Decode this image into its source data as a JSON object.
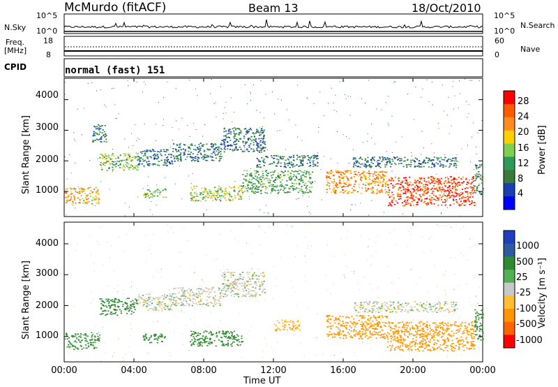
{
  "header": {
    "site": "McMurdo (fitACF)",
    "beam": "Beam 13",
    "date": "18/Oct/2010"
  },
  "noise_panel": {
    "left_label": "N.Sky",
    "left_ticks": [
      "10^5",
      "10^0"
    ],
    "right_ticks": [
      "10^5",
      "10^0"
    ],
    "right_label": "N.Search"
  },
  "freq_panel": {
    "left_label_1": "Freq.",
    "left_label_2": "[MHz]",
    "left_ticks": [
      "18",
      "8"
    ],
    "right_ticks": [
      "60",
      "0"
    ],
    "right_label": "Nave"
  },
  "cpid": {
    "label": "CPID",
    "value": "normal (fast) 151"
  },
  "colors": {
    "power": [
      "#0000ff",
      "#1a3fb0",
      "#3a7a3a",
      "#2e9a5a",
      "#7fd050",
      "#ffd000",
      "#ff8c1a",
      "#ff5a00",
      "#ff0000"
    ],
    "velocity": [
      "#ff0000",
      "#ff6400",
      "#ff9600",
      "#ffbe30",
      "#c8c8c8",
      "#52b052",
      "#2e8a2e",
      "#2e5aa0",
      "#1e40c0"
    ]
  },
  "chart_data": [
    {
      "type": "heatmap",
      "title": "Power",
      "xlabel": "Time UT",
      "ylabel": "Slant Range [km]",
      "x_ticks": [
        "00:00",
        "04:00",
        "08:00",
        "12:00",
        "16:00",
        "20:00",
        "00:00"
      ],
      "y_ticks": [
        "1000",
        "2000",
        "3000",
        "4000"
      ],
      "xlim_hours": [
        0,
        24
      ],
      "ylim_km": [
        180,
        4700
      ],
      "colorbar": {
        "label": "Power [dB]",
        "ticks": [
          "4",
          "8",
          "12",
          "16",
          "20",
          "24",
          "28"
        ],
        "range": [
          0,
          30
        ]
      },
      "echo_regions": [
        {
          "t0": 0.0,
          "t1": 2.0,
          "r0": 600,
          "r1": 1150,
          "value": 20
        },
        {
          "t0": 1.6,
          "t1": 2.4,
          "r0": 2600,
          "r1": 3200,
          "value": 8
        },
        {
          "t0": 2.0,
          "t1": 4.2,
          "r0": 1700,
          "r1": 2250,
          "value": 14
        },
        {
          "t0": 4.2,
          "t1": 6.2,
          "r0": 1850,
          "r1": 2400,
          "value": 8
        },
        {
          "t0": 4.5,
          "t1": 5.8,
          "r0": 800,
          "r1": 1100,
          "value": 14
        },
        {
          "t0": 6.2,
          "t1": 9.0,
          "r0": 2000,
          "r1": 2600,
          "value": 8
        },
        {
          "t0": 7.2,
          "t1": 10.2,
          "r0": 700,
          "r1": 1200,
          "value": 16
        },
        {
          "t0": 9.0,
          "t1": 11.5,
          "r0": 2300,
          "r1": 3100,
          "value": 8
        },
        {
          "t0": 10.2,
          "t1": 14.2,
          "r0": 950,
          "r1": 1700,
          "value": 12
        },
        {
          "t0": 11.0,
          "t1": 14.5,
          "r0": 1800,
          "r1": 2200,
          "value": 8
        },
        {
          "t0": 15.0,
          "t1": 18.5,
          "r0": 950,
          "r1": 1700,
          "value": 22
        },
        {
          "t0": 16.5,
          "t1": 22.5,
          "r0": 1800,
          "r1": 2150,
          "value": 8
        },
        {
          "t0": 18.5,
          "t1": 23.5,
          "r0": 550,
          "r1": 1500,
          "value": 26
        },
        {
          "t0": 23.5,
          "t1": 24.0,
          "r0": 900,
          "r1": 1900,
          "value": 10
        }
      ]
    },
    {
      "type": "heatmap",
      "title": "Velocity",
      "xlabel": "Time UT",
      "ylabel": "Slant Range [km]",
      "x_ticks": [
        "00:00",
        "04:00",
        "08:00",
        "12:00",
        "16:00",
        "20:00",
        "00:00"
      ],
      "y_ticks": [
        "1000",
        "2000",
        "3000",
        "4000"
      ],
      "xlim_hours": [
        0,
        24
      ],
      "ylim_km": [
        180,
        4700
      ],
      "colorbar": {
        "label": "Velocity [m s⁻¹]",
        "ticks": [
          "1000",
          "500",
          "25",
          "-25",
          "-100",
          "-500",
          "-1000"
        ]
      },
      "echo_regions": [
        {
          "t0": 0.0,
          "t1": 2.0,
          "r0": 600,
          "r1": 1150,
          "value": 100
        },
        {
          "t0": 2.0,
          "t1": 4.2,
          "r0": 1700,
          "r1": 2250,
          "value": 150
        },
        {
          "t0": 4.2,
          "t1": 6.2,
          "r0": 1850,
          "r1": 2400,
          "value": 0
        },
        {
          "t0": 4.5,
          "t1": 5.8,
          "r0": 800,
          "r1": 1100,
          "value": 150
        },
        {
          "t0": 6.2,
          "t1": 9.0,
          "r0": 2000,
          "r1": 2600,
          "value": 0
        },
        {
          "t0": 7.2,
          "t1": 10.2,
          "r0": 700,
          "r1": 1200,
          "value": 150
        },
        {
          "t0": 9.0,
          "t1": 11.5,
          "r0": 2300,
          "r1": 3100,
          "value": 0
        },
        {
          "t0": 12.0,
          "t1": 13.5,
          "r0": 1200,
          "r1": 1550,
          "value": -80
        },
        {
          "t0": 15.0,
          "t1": 18.5,
          "r0": 950,
          "r1": 1700,
          "value": -150
        },
        {
          "t0": 16.5,
          "t1": 22.5,
          "r0": 1800,
          "r1": 2150,
          "value": 0
        },
        {
          "t0": 18.5,
          "t1": 23.5,
          "r0": 550,
          "r1": 1500,
          "value": -150
        },
        {
          "t0": 23.5,
          "t1": 24.0,
          "r0": 900,
          "r1": 1900,
          "value": 150
        }
      ]
    }
  ]
}
